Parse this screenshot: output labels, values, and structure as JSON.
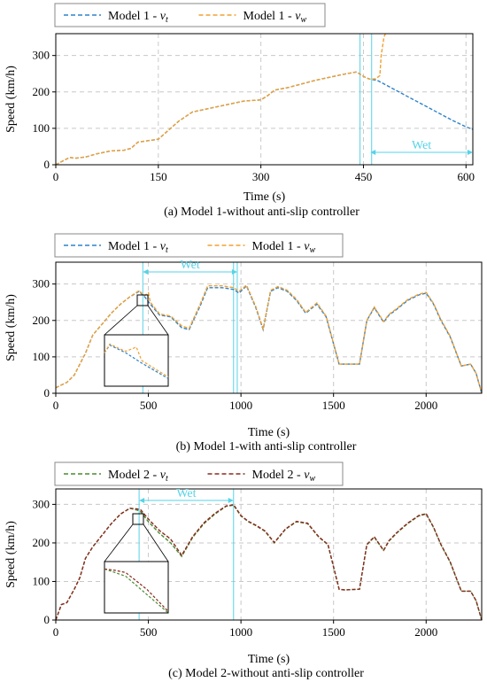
{
  "colors": {
    "m1_vt": "#2f83c9",
    "m1_vw": "#f0a030",
    "m2_vt": "#4a8c34",
    "m2_vw": "#8b2a1e",
    "wet": "#56d3e8",
    "grid": "#c8c8c8"
  },
  "chart_data": [
    {
      "type": "line",
      "caption": "(a) Model 1-without anti-slip controller",
      "xlabel": "Time (s)",
      "ylabel": "Speed (km/h)",
      "xlim": [
        0,
        610
      ],
      "ylim": [
        0,
        360
      ],
      "xticks": [
        0,
        150,
        300,
        450,
        600
      ],
      "yticks": [
        0,
        100,
        200,
        300
      ],
      "grid": true,
      "legend": {
        "position": "top",
        "items": [
          {
            "label": "Model 1 - ",
            "sub": "t",
            "color": "m1_vt"
          },
          {
            "label": "Model 1 - ",
            "sub": "w",
            "color": "m1_vw"
          }
        ]
      },
      "wet": {
        "label": "Wet",
        "from": 460,
        "to": 610
      },
      "vlines": [
        445,
        462,
        610
      ],
      "series": [
        {
          "name": "Model 1 - vt",
          "color": "m1_vt",
          "x": [
            0,
            10,
            20,
            30,
            45,
            60,
            80,
            100,
            110,
            120,
            150,
            165,
            180,
            200,
            225,
            250,
            275,
            300,
            310,
            320,
            340,
            360,
            380,
            400,
            420,
            440,
            448,
            455,
            460,
            470,
            480,
            500,
            520,
            540,
            560,
            580,
            600,
            610
          ],
          "y": [
            0,
            10,
            20,
            18,
            22,
            30,
            38,
            40,
            45,
            62,
            70,
            95,
            120,
            145,
            155,
            165,
            175,
            178,
            190,
            205,
            212,
            222,
            232,
            240,
            248,
            255,
            245,
            238,
            235,
            232,
            222,
            202,
            182,
            162,
            142,
            122,
            104,
            97
          ]
        },
        {
          "name": "Model 1 - vw",
          "color": "m1_vw",
          "x": [
            0,
            10,
            20,
            30,
            45,
            60,
            80,
            100,
            110,
            120,
            150,
            165,
            180,
            200,
            225,
            250,
            275,
            300,
            310,
            320,
            340,
            360,
            380,
            400,
            420,
            440,
            448,
            455,
            460,
            468,
            474,
            476,
            480,
            482
          ],
          "y": [
            0,
            10,
            20,
            18,
            22,
            30,
            38,
            40,
            45,
            62,
            70,
            95,
            120,
            145,
            155,
            165,
            175,
            178,
            190,
            205,
            212,
            222,
            232,
            240,
            248,
            255,
            245,
            238,
            235,
            236,
            245,
            300,
            350,
            360
          ]
        }
      ]
    },
    {
      "type": "line",
      "caption": "(b) Model 1-with anti-slip controller",
      "xlabel": "Time (s)",
      "ylabel": "Speed (km/h)",
      "xlim": [
        0,
        2300
      ],
      "ylim": [
        0,
        360
      ],
      "xticks": [
        0,
        500,
        1000,
        1500,
        2000
      ],
      "yticks": [
        0,
        100,
        200,
        300
      ],
      "grid": true,
      "legend": {
        "position": "top",
        "items": [
          {
            "label": "Model 1 - ",
            "sub": "t",
            "color": "m1_vt"
          },
          {
            "label": "Model 1 - ",
            "sub": "w",
            "color": "m1_vw"
          }
        ]
      },
      "wet": {
        "label": "Wet",
        "from": 470,
        "to": 980
      },
      "vlines": [
        470,
        960,
        980
      ],
      "inset": true,
      "series": [
        {
          "name": "Model 1 - vt",
          "color": "m1_vt",
          "x": [
            0,
            60,
            100,
            130,
            160,
            200,
            250,
            300,
            350,
            400,
            450,
            480,
            510,
            560,
            620,
            680,
            720,
            780,
            820,
            900,
            960,
            990,
            1030,
            1080,
            1120,
            1160,
            1200,
            1250,
            1300,
            1350,
            1410,
            1460,
            1530,
            1560,
            1640,
            1680,
            1720,
            1770,
            1800,
            1840,
            1900,
            1960,
            2000,
            2040,
            2080,
            2130,
            2190,
            2240,
            2270,
            2300
          ],
          "y": [
            15,
            30,
            50,
            80,
            110,
            160,
            190,
            220,
            245,
            265,
            280,
            265,
            245,
            215,
            210,
            180,
            175,
            240,
            290,
            290,
            285,
            275,
            295,
            235,
            175,
            280,
            290,
            280,
            255,
            220,
            245,
            210,
            80,
            80,
            80,
            200,
            235,
            195,
            215,
            230,
            255,
            270,
            275,
            245,
            200,
            155,
            75,
            80,
            55,
            0
          ]
        },
        {
          "name": "Model 1 - vw",
          "color": "m1_vw",
          "x": [
            0,
            60,
            100,
            130,
            160,
            200,
            250,
            300,
            350,
            400,
            450,
            470,
            480,
            500,
            510,
            560,
            620,
            680,
            720,
            780,
            820,
            900,
            960,
            990,
            1030,
            1080,
            1120,
            1160,
            1200,
            1250,
            1300,
            1350,
            1410,
            1460,
            1530,
            1560,
            1640,
            1680,
            1720,
            1770,
            1800,
            1840,
            1900,
            1960,
            2000,
            2040,
            2080,
            2130,
            2190,
            2240,
            2270,
            2300
          ],
          "y": [
            15,
            30,
            50,
            80,
            110,
            160,
            190,
            220,
            245,
            265,
            282,
            272,
            268,
            276,
            250,
            218,
            212,
            185,
            178,
            245,
            295,
            295,
            290,
            280,
            297,
            238,
            177,
            283,
            293,
            283,
            258,
            222,
            248,
            212,
            80,
            80,
            80,
            200,
            237,
            197,
            217,
            232,
            257,
            272,
            277,
            247,
            202,
            157,
            75,
            80,
            55,
            0
          ]
        }
      ]
    },
    {
      "type": "line",
      "caption": "(c) Model 2-without anti-slip controller",
      "xlabel": "Time (s)",
      "ylabel": "Speed (km/h)",
      "xlim": [
        0,
        2300
      ],
      "ylim": [
        0,
        340
      ],
      "xticks": [
        0,
        500,
        1000,
        1500,
        2000
      ],
      "yticks": [
        0,
        100,
        200,
        300
      ],
      "grid": true,
      "legend": {
        "position": "top",
        "items": [
          {
            "label": "Model 2 - ",
            "sub": "t",
            "color": "m2_vt"
          },
          {
            "label": "Model 2 - ",
            "sub": "w",
            "color": "m2_vw"
          }
        ]
      },
      "wet": {
        "label": "Wet",
        "from": 450,
        "to": 960
      },
      "vlines": [
        450,
        960
      ],
      "inset": true,
      "series": [
        {
          "name": "Model 2 - vt",
          "color": "m2_vt",
          "x": [
            0,
            30,
            60,
            100,
            130,
            160,
            200,
            250,
            300,
            350,
            400,
            440,
            460,
            500,
            560,
            620,
            680,
            740,
            800,
            860,
            920,
            960,
            1000,
            1040,
            1080,
            1130,
            1180,
            1240,
            1300,
            1360,
            1420,
            1470,
            1530,
            1560,
            1640,
            1680,
            1720,
            1770,
            1800,
            1840,
            1900,
            1960,
            2000,
            2040,
            2080,
            2130,
            2190,
            2240,
            2270,
            2300
          ],
          "y": [
            0,
            40,
            45,
            80,
            110,
            160,
            190,
            220,
            250,
            275,
            290,
            285,
            280,
            255,
            225,
            200,
            165,
            215,
            250,
            275,
            295,
            298,
            270,
            255,
            245,
            230,
            200,
            235,
            255,
            250,
            215,
            195,
            80,
            78,
            80,
            195,
            215,
            180,
            205,
            225,
            250,
            270,
            275,
            240,
            195,
            150,
            75,
            75,
            50,
            0
          ]
        },
        {
          "name": "Model 2 - vw",
          "color": "m2_vw",
          "x": [
            0,
            30,
            60,
            100,
            130,
            160,
            200,
            250,
            300,
            350,
            400,
            440,
            460,
            500,
            560,
            620,
            680,
            740,
            800,
            860,
            920,
            960,
            1000,
            1040,
            1080,
            1130,
            1180,
            1240,
            1300,
            1360,
            1420,
            1470,
            1530,
            1560,
            1640,
            1680,
            1720,
            1770,
            1800,
            1840,
            1900,
            1960,
            2000,
            2040,
            2080,
            2130,
            2190,
            2240,
            2270,
            2300
          ],
          "y": [
            0,
            40,
            45,
            80,
            110,
            160,
            190,
            220,
            250,
            275,
            290,
            288,
            285,
            262,
            232,
            210,
            168,
            217,
            252,
            277,
            296,
            299,
            271,
            256,
            246,
            231,
            201,
            236,
            256,
            251,
            216,
            196,
            80,
            78,
            80,
            196,
            216,
            181,
            206,
            226,
            251,
            271,
            276,
            241,
            196,
            151,
            75,
            75,
            50,
            0
          ]
        }
      ]
    }
  ]
}
